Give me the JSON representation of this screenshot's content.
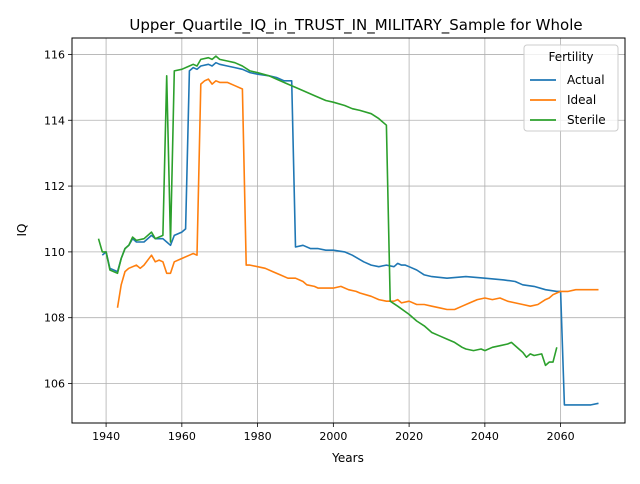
{
  "chart_data": {
    "type": "line",
    "title": "Upper_Quartile_IQ_in_TRUST_IN_MILITARY_Sample for Whole",
    "xlabel": "Years",
    "ylabel": "IQ",
    "xlim": [
      1931,
      2077
    ],
    "ylim": [
      104.8,
      116.5
    ],
    "xticks": [
      1940,
      1960,
      1980,
      2000,
      2020,
      2040,
      2060
    ],
    "yticks": [
      106,
      108,
      110,
      112,
      114,
      116
    ],
    "grid": true,
    "legend": {
      "title": "Fertility",
      "placement": "top-right"
    },
    "series": [
      {
        "name": "Actual",
        "color": "#1f77b4",
        "points": [
          [
            1939,
            109.9
          ],
          [
            1940,
            110.0
          ],
          [
            1941,
            109.5
          ],
          [
            1943,
            109.4
          ],
          [
            1944,
            109.8
          ],
          [
            1945,
            110.1
          ],
          [
            1946,
            110.2
          ],
          [
            1947,
            110.4
          ],
          [
            1948,
            110.3
          ],
          [
            1950,
            110.3
          ],
          [
            1952,
            110.5
          ],
          [
            1953,
            110.4
          ],
          [
            1955,
            110.4
          ],
          [
            1956,
            110.3
          ],
          [
            1957,
            110.2
          ],
          [
            1958,
            110.5
          ],
          [
            1960,
            110.6
          ],
          [
            1961,
            110.7
          ],
          [
            1962,
            115.5
          ],
          [
            1963,
            115.6
          ],
          [
            1964,
            115.55
          ],
          [
            1965,
            115.65
          ],
          [
            1967,
            115.7
          ],
          [
            1968,
            115.65
          ],
          [
            1969,
            115.75
          ],
          [
            1970,
            115.7
          ],
          [
            1972,
            115.65
          ],
          [
            1974,
            115.6
          ],
          [
            1976,
            115.55
          ],
          [
            1978,
            115.45
          ],
          [
            1980,
            115.4
          ],
          [
            1983,
            115.35
          ],
          [
            1985,
            115.3
          ],
          [
            1987,
            115.2
          ],
          [
            1989,
            115.2
          ],
          [
            1990,
            110.15
          ],
          [
            1992,
            110.2
          ],
          [
            1994,
            110.1
          ],
          [
            1996,
            110.1
          ],
          [
            1998,
            110.05
          ],
          [
            2000,
            110.05
          ],
          [
            2003,
            110.0
          ],
          [
            2005,
            109.9
          ],
          [
            2008,
            109.7
          ],
          [
            2010,
            109.6
          ],
          [
            2012,
            109.55
          ],
          [
            2014,
            109.6
          ],
          [
            2016,
            109.55
          ],
          [
            2017,
            109.65
          ],
          [
            2018,
            109.6
          ],
          [
            2019,
            109.6
          ],
          [
            2020,
            109.55
          ],
          [
            2022,
            109.45
          ],
          [
            2024,
            109.3
          ],
          [
            2026,
            109.25
          ],
          [
            2030,
            109.2
          ],
          [
            2035,
            109.25
          ],
          [
            2040,
            109.2
          ],
          [
            2045,
            109.15
          ],
          [
            2048,
            109.1
          ],
          [
            2050,
            109.0
          ],
          [
            2053,
            108.95
          ],
          [
            2056,
            108.85
          ],
          [
            2059,
            108.8
          ],
          [
            2060,
            108.8
          ],
          [
            2061,
            105.35
          ],
          [
            2063,
            105.35
          ],
          [
            2066,
            105.35
          ],
          [
            2068,
            105.35
          ],
          [
            2070,
            105.4
          ]
        ]
      },
      {
        "name": "Ideal",
        "color": "#ff7f0e",
        "points": [
          [
            1943,
            108.3
          ],
          [
            1944,
            109.0
          ],
          [
            1945,
            109.4
          ],
          [
            1946,
            109.5
          ],
          [
            1948,
            109.6
          ],
          [
            1949,
            109.5
          ],
          [
            1950,
            109.6
          ],
          [
            1952,
            109.9
          ],
          [
            1953,
            109.7
          ],
          [
            1954,
            109.75
          ],
          [
            1955,
            109.7
          ],
          [
            1956,
            109.35
          ],
          [
            1957,
            109.35
          ],
          [
            1958,
            109.7
          ],
          [
            1960,
            109.8
          ],
          [
            1962,
            109.9
          ],
          [
            1963,
            109.95
          ],
          [
            1964,
            109.9
          ],
          [
            1965,
            115.1
          ],
          [
            1966,
            115.2
          ],
          [
            1967,
            115.25
          ],
          [
            1968,
            115.1
          ],
          [
            1969,
            115.2
          ],
          [
            1970,
            115.15
          ],
          [
            1972,
            115.15
          ],
          [
            1974,
            115.05
          ],
          [
            1976,
            114.95
          ],
          [
            1977,
            109.6
          ],
          [
            1978,
            109.6
          ],
          [
            1980,
            109.55
          ],
          [
            1982,
            109.5
          ],
          [
            1984,
            109.4
          ],
          [
            1986,
            109.3
          ],
          [
            1988,
            109.2
          ],
          [
            1990,
            109.2
          ],
          [
            1992,
            109.1
          ],
          [
            1993,
            109.0
          ],
          [
            1995,
            108.95
          ],
          [
            1996,
            108.9
          ],
          [
            1998,
            108.9
          ],
          [
            2000,
            108.9
          ],
          [
            2002,
            108.95
          ],
          [
            2004,
            108.85
          ],
          [
            2006,
            108.8
          ],
          [
            2007,
            108.75
          ],
          [
            2010,
            108.65
          ],
          [
            2012,
            108.55
          ],
          [
            2014,
            108.5
          ],
          [
            2016,
            108.5
          ],
          [
            2017,
            108.55
          ],
          [
            2018,
            108.45
          ],
          [
            2020,
            108.5
          ],
          [
            2022,
            108.4
          ],
          [
            2024,
            108.4
          ],
          [
            2026,
            108.35
          ],
          [
            2028,
            108.3
          ],
          [
            2030,
            108.25
          ],
          [
            2032,
            108.25
          ],
          [
            2034,
            108.35
          ],
          [
            2036,
            108.45
          ],
          [
            2038,
            108.55
          ],
          [
            2040,
            108.6
          ],
          [
            2042,
            108.55
          ],
          [
            2044,
            108.6
          ],
          [
            2046,
            108.5
          ],
          [
            2048,
            108.45
          ],
          [
            2050,
            108.4
          ],
          [
            2052,
            108.35
          ],
          [
            2054,
            108.4
          ],
          [
            2056,
            108.55
          ],
          [
            2057,
            108.6
          ],
          [
            2058,
            108.7
          ],
          [
            2059,
            108.75
          ],
          [
            2060,
            108.8
          ],
          [
            2062,
            108.8
          ],
          [
            2064,
            108.85
          ],
          [
            2066,
            108.85
          ],
          [
            2068,
            108.85
          ],
          [
            2070,
            108.85
          ]
        ]
      },
      {
        "name": "Sterile",
        "color": "#2ca02c",
        "points": [
          [
            1938,
            110.4
          ],
          [
            1939,
            110.0
          ],
          [
            1940,
            110.0
          ],
          [
            1941,
            109.45
          ],
          [
            1943,
            109.35
          ],
          [
            1944,
            109.8
          ],
          [
            1945,
            110.1
          ],
          [
            1946,
            110.2
          ],
          [
            1947,
            110.45
          ],
          [
            1948,
            110.35
          ],
          [
            1950,
            110.4
          ],
          [
            1952,
            110.6
          ],
          [
            1953,
            110.4
          ],
          [
            1955,
            110.5
          ],
          [
            1956,
            115.35
          ],
          [
            1957,
            110.3
          ],
          [
            1958,
            115.5
          ],
          [
            1960,
            115.55
          ],
          [
            1962,
            115.65
          ],
          [
            1963,
            115.7
          ],
          [
            1964,
            115.65
          ],
          [
            1965,
            115.85
          ],
          [
            1967,
            115.9
          ],
          [
            1968,
            115.85
          ],
          [
            1969,
            115.95
          ],
          [
            1970,
            115.85
          ],
          [
            1972,
            115.8
          ],
          [
            1974,
            115.75
          ],
          [
            1976,
            115.65
          ],
          [
            1978,
            115.5
          ],
          [
            1980,
            115.45
          ],
          [
            1983,
            115.35
          ],
          [
            1985,
            115.25
          ],
          [
            1988,
            115.1
          ],
          [
            1990,
            115.0
          ],
          [
            1992,
            114.9
          ],
          [
            1995,
            114.75
          ],
          [
            1998,
            114.6
          ],
          [
            2000,
            114.55
          ],
          [
            2003,
            114.45
          ],
          [
            2005,
            114.35
          ],
          [
            2007,
            114.3
          ],
          [
            2010,
            114.2
          ],
          [
            2012,
            114.05
          ],
          [
            2014,
            113.85
          ],
          [
            2015,
            108.5
          ],
          [
            2017,
            108.35
          ],
          [
            2020,
            108.1
          ],
          [
            2022,
            107.9
          ],
          [
            2024,
            107.75
          ],
          [
            2026,
            107.55
          ],
          [
            2028,
            107.45
          ],
          [
            2030,
            107.35
          ],
          [
            2032,
            107.25
          ],
          [
            2034,
            107.1
          ],
          [
            2035,
            107.05
          ],
          [
            2037,
            107.0
          ],
          [
            2039,
            107.05
          ],
          [
            2040,
            107.0
          ],
          [
            2042,
            107.1
          ],
          [
            2044,
            107.15
          ],
          [
            2046,
            107.2
          ],
          [
            2047,
            107.25
          ],
          [
            2049,
            107.05
          ],
          [
            2050,
            106.95
          ],
          [
            2051,
            106.8
          ],
          [
            2052,
            106.9
          ],
          [
            2053,
            106.85
          ],
          [
            2055,
            106.9
          ],
          [
            2056,
            106.55
          ],
          [
            2057,
            106.65
          ],
          [
            2058,
            106.65
          ],
          [
            2059,
            107.1
          ]
        ]
      }
    ]
  }
}
